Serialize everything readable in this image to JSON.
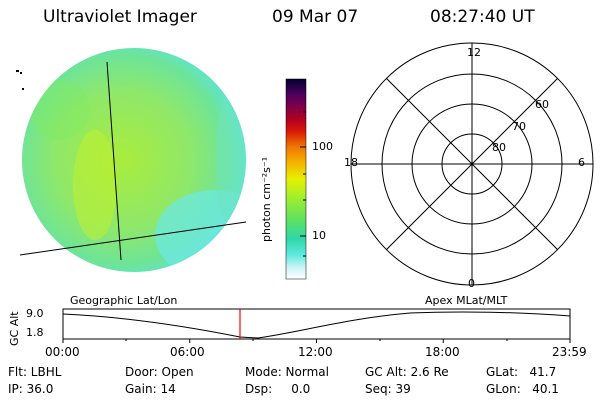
{
  "header": {
    "instrument": "Ultraviolet Imager",
    "date": "09 Mar 07",
    "time": "08:27:40 UT"
  },
  "colorbar": {
    "unit_label": "photon cm⁻²s⁻¹",
    "ticks": [
      "100",
      "10"
    ],
    "colors": [
      "#000033",
      "#300050",
      "#5a0060",
      "#8a0040",
      "#b00020",
      "#d01010",
      "#e04000",
      "#f08000",
      "#f4b000",
      "#f0e000",
      "#d8f000",
      "#b0f020",
      "#80e840",
      "#50e070",
      "#30d8a0",
      "#30e0c8",
      "#60e8e0",
      "#a0f0f0",
      "#d8f8f8",
      "#ffffff"
    ]
  },
  "image_panel": {
    "label": "Geographic Lat/Lon",
    "disk_color": "#8ee86a",
    "edge_color": "#5fe8d8"
  },
  "polar_panel": {
    "label": "Apex MLat/MLT",
    "mlt_labels": {
      "top": "12",
      "left": "18",
      "right": "6",
      "bottom": "0"
    },
    "lat_labels": [
      "60",
      "70",
      "80"
    ]
  },
  "timeline": {
    "ylabel": "GC Alt",
    "y_ticks": [
      "9.0",
      "1.8"
    ],
    "x_ticks": [
      "00:00",
      "06:00",
      "12:00",
      "18:00",
      "23:59"
    ],
    "marker_time": "08:27:40",
    "marker_color": "#ff0000"
  },
  "status": {
    "flt": "Flt: LBHL",
    "ip": "IP: 36.0",
    "door": "Door: Open",
    "gain": "Gain: 14",
    "mode": "Mode: Normal",
    "dsp": "Dsp:     0.0",
    "gc_alt": "GC Alt: 2.6 Re",
    "seq": "Seq: 39",
    "glat": "GLat:   41.7",
    "glon": "GLon:   40.1"
  }
}
